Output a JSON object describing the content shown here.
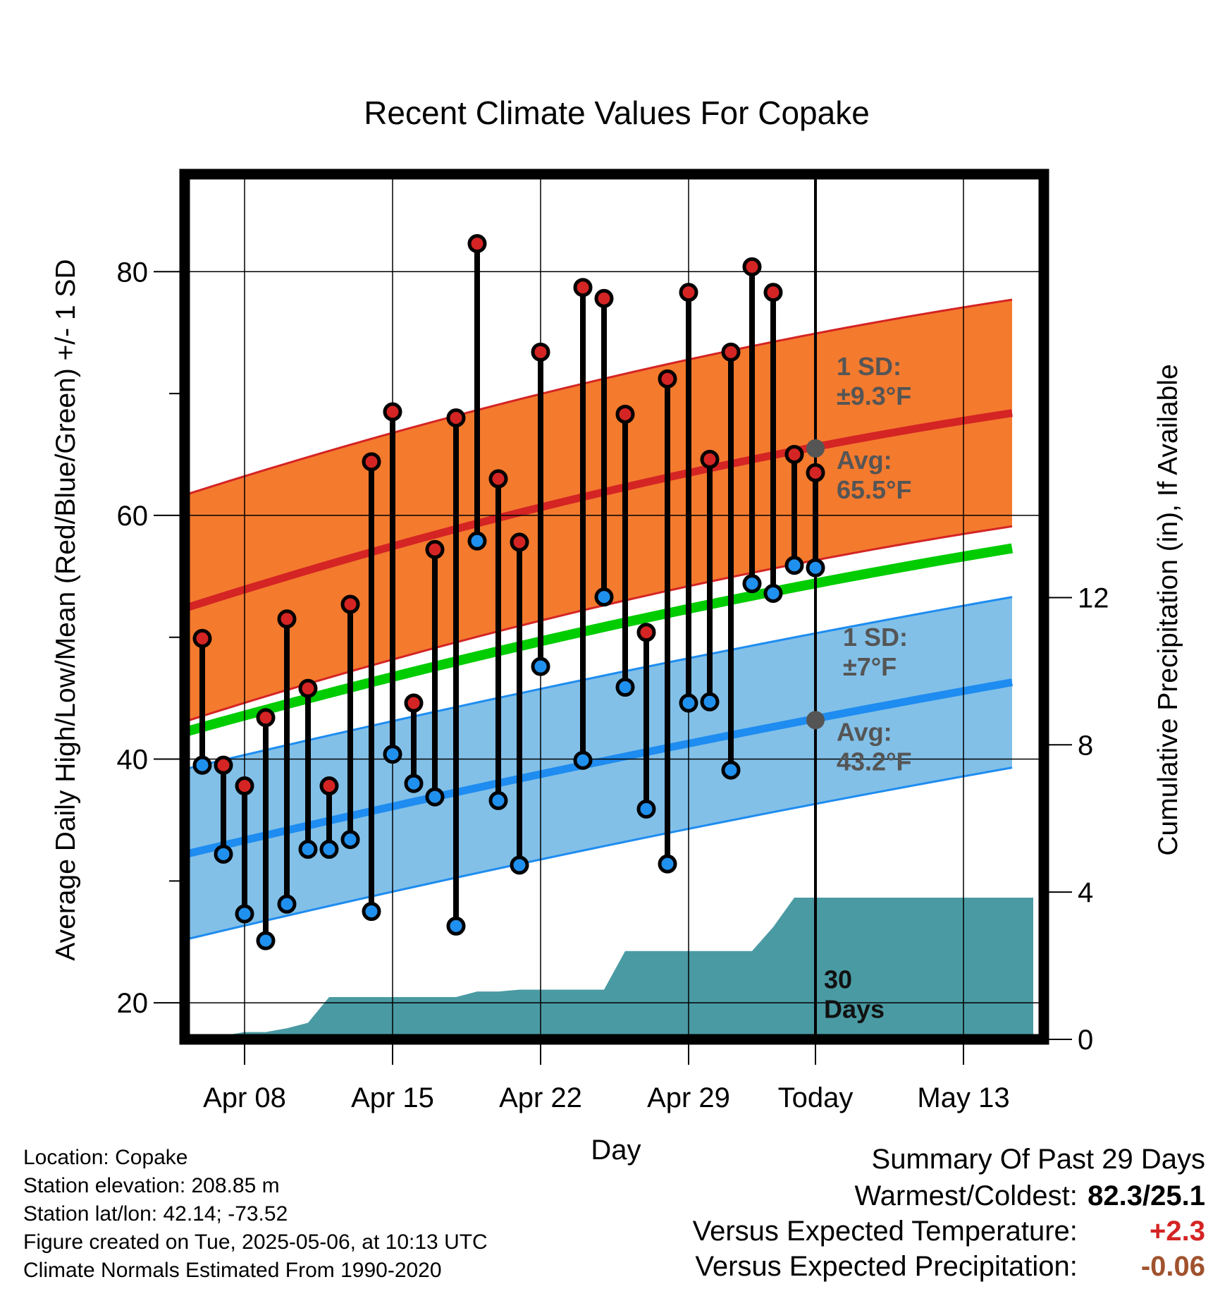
{
  "chart_data": {
    "type": "line",
    "title": "Recent Climate Values For Copake",
    "xlabel": "Day",
    "ylabel": "Average Daily High/Low/Mean (Red/Blue/Green) +/- 1 SD",
    "y2label": "Cumulative Precipitation (in), If Available",
    "ylim": [
      17,
      88
    ],
    "y2lim": [
      0,
      23.5
    ],
    "x_ticks": [
      "Apr 08",
      "Apr 15",
      "Apr 22",
      "Apr 29",
      "Today",
      "May 13"
    ],
    "y_ticks": [
      20,
      40,
      60,
      80
    ],
    "y2_ticks": [
      0,
      4,
      8,
      12
    ],
    "grid": true,
    "today_marker": "Today",
    "window_label": "30\nDays",
    "days": [
      "Apr 06",
      "Apr 07",
      "Apr 08",
      "Apr 09",
      "Apr 10",
      "Apr 11",
      "Apr 12",
      "Apr 13",
      "Apr 14",
      "Apr 15",
      "Apr 16",
      "Apr 17",
      "Apr 18",
      "Apr 19",
      "Apr 20",
      "Apr 21",
      "Apr 22",
      "Apr 23",
      "Apr 24",
      "Apr 25",
      "Apr 26",
      "Apr 27",
      "Apr 28",
      "Apr 29",
      "Apr 30",
      "May 01",
      "May 02",
      "May 03",
      "May 04",
      "May 05"
    ],
    "daily_high": [
      49.9,
      39.5,
      37.8,
      43.4,
      51.5,
      45.8,
      37.8,
      52.7,
      64.4,
      68.5,
      44.6,
      57.2,
      68.0,
      82.3,
      63.0,
      57.8,
      73.4,
      null,
      78.7,
      77.8,
      68.3,
      50.4,
      71.2,
      78.3,
      64.6,
      73.4,
      80.4,
      78.3,
      65.0,
      63.5
    ],
    "daily_low": [
      39.5,
      32.2,
      27.3,
      25.1,
      28.1,
      32.6,
      32.6,
      33.4,
      27.5,
      40.4,
      38.0,
      36.9,
      26.3,
      57.9,
      36.6,
      31.3,
      47.6,
      null,
      39.9,
      53.3,
      45.9,
      35.9,
      31.4,
      44.6,
      44.7,
      39.1,
      54.4,
      53.6,
      55.9,
      55.7
    ],
    "normal_high": {
      "start": 52.0,
      "today": 65.5,
      "end": 68.4,
      "sd": 9.3
    },
    "normal_low": {
      "start": 31.9,
      "today": 43.2,
      "end": 46.3,
      "sd": 7
    },
    "normal_mean": {
      "start": 41.9,
      "today": 54.3,
      "end": 57.3
    },
    "precip_cumulative": [
      0.0,
      0.1,
      0.2,
      0.2,
      0.3,
      0.45,
      1.15,
      1.15,
      1.15,
      1.15,
      1.15,
      1.15,
      1.15,
      1.3,
      1.3,
      1.35,
      1.35,
      1.35,
      1.35,
      1.35,
      2.4,
      2.4,
      2.4,
      2.4,
      2.4,
      2.4,
      2.4,
      3.05,
      3.85,
      3.85
    ],
    "annotations": {
      "high_sd": "1 SD:\n±9.3°F",
      "high_avg": "Avg:\n65.5°F",
      "low_sd": "1 SD:\n±7°F",
      "low_avg": "Avg:\n43.2°F"
    }
  },
  "info": {
    "location": "Location: Copake",
    "elevation": "Station elevation: 208.85 m",
    "latlon": "Station lat/lon: 42.14; -73.52",
    "created": "Figure created on Tue, 2025-05-06, at 10:13 UTC",
    "normals": "Climate Normals Estimated From 1990-2020"
  },
  "summary": {
    "title": "Summary Of Past 29 Days",
    "warm_cold_label": "Warmest/Coldest:",
    "warm_cold_value": "82.3/25.1",
    "temp_label": "Versus Expected Temperature:",
    "temp_value": "+2.3",
    "precip_label": "Versus Expected Precipitation:",
    "precip_value": "-0.06"
  },
  "colors": {
    "high_band": "#f47a2e",
    "high_line": "#d42424",
    "low_band": "#82c0e8",
    "low_line": "#1e8cf0",
    "mean_line": "#00cc00",
    "precip": "#4a9aa3",
    "marker_high": "#d42424",
    "marker_low": "#2090ee",
    "annotation": "#555555",
    "temp_value": "#d42424",
    "precip_value": "#a0522d"
  }
}
